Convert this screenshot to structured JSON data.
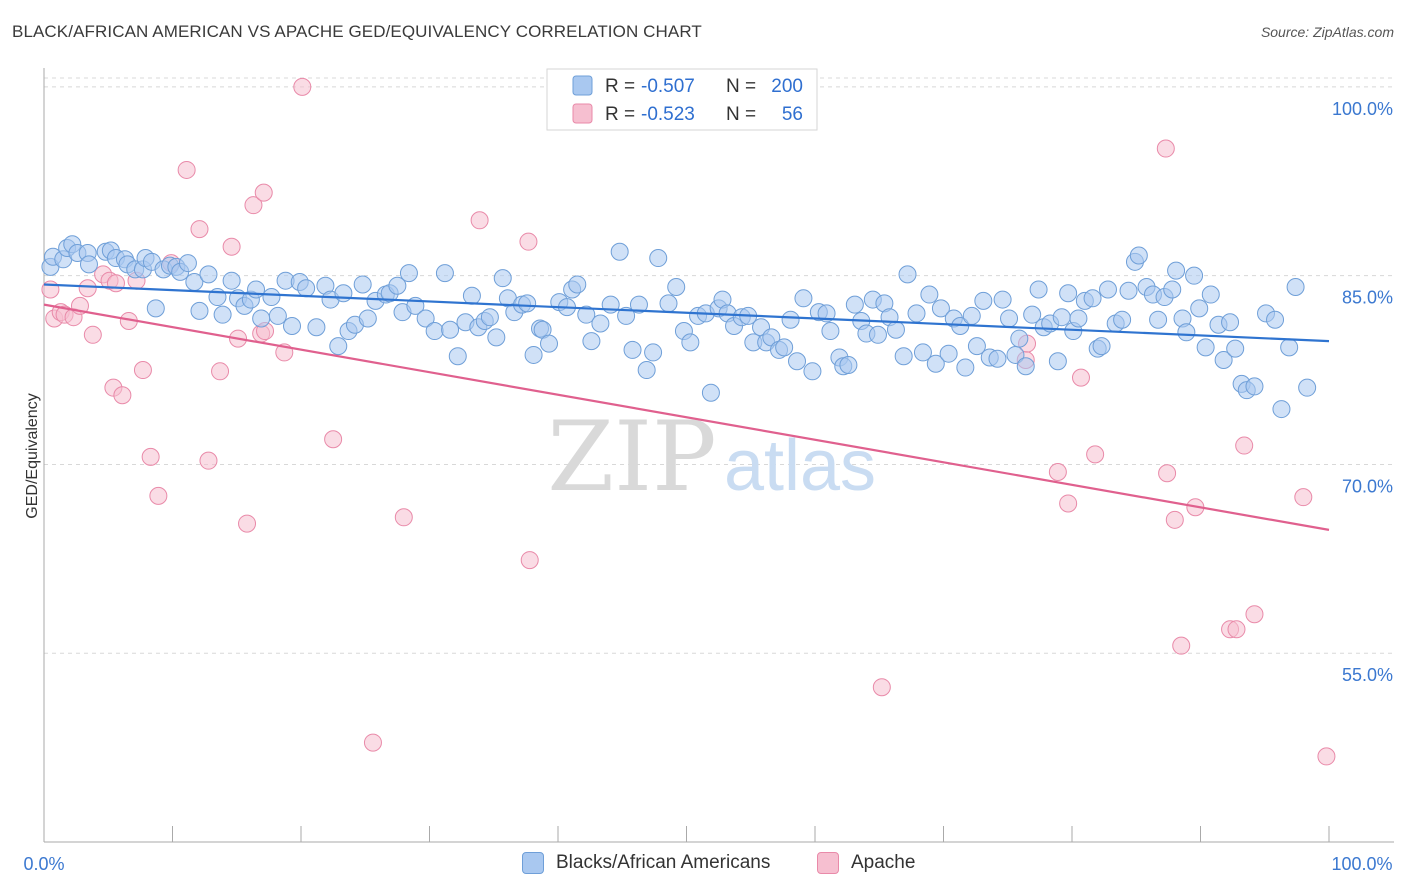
{
  "title": "BLACK/AFRICAN AMERICAN VS APACHE GED/EQUIVALENCY CORRELATION CHART",
  "source": "Source: ZipAtlas.com",
  "watermark": {
    "zip": "ZIP",
    "atlas": "atlas"
  },
  "colors": {
    "blue_fill": "#a9c8f0",
    "blue_stroke": "#6f9fd8",
    "blue_line": "#2f74d0",
    "pink_fill": "#f6bfd0",
    "pink_stroke": "#e98aa9",
    "pink_line": "#e0608e",
    "axis_text": "#3b78d0",
    "grid": "#d8d8d8"
  },
  "legend": {
    "rows": [
      {
        "r_label": "R =",
        "r_value": "-0.507",
        "n_label": "N =",
        "n_value": "200"
      },
      {
        "r_label": "R =",
        "r_value": "-0.523",
        "n_label": "N =",
        "n_value": "56"
      }
    ]
  },
  "bottom_legend": {
    "series1": "Blacks/African Americans",
    "series2": "Apache"
  },
  "chart_data": {
    "type": "scatter",
    "title": "BLACK/AFRICAN AMERICAN VS APACHE GED/EQUIVALENCY CORRELATION CHART",
    "xlabel": "",
    "ylabel": "GED/Equivalency",
    "xlim": [
      0,
      100
    ],
    "ylim": [
      40,
      101.5
    ],
    "x_tick_labels": [
      "0.0%",
      "100.0%"
    ],
    "y_ticks": [
      55,
      70,
      85,
      100
    ],
    "y_tick_labels": [
      "55.0%",
      "70.0%",
      "85.0%",
      "100.0%"
    ],
    "grid": "horizontal dashed",
    "legend_position": "top-center",
    "series": [
      {
        "name": "Blacks/African Americans",
        "r": -0.507,
        "n": 200,
        "trend": {
          "x": [
            0,
            100
          ],
          "y": [
            84.3,
            79.8
          ]
        },
        "points": [
          [
            0.5,
            85.7
          ],
          [
            0.7,
            86.5
          ],
          [
            1.5,
            86.3
          ],
          [
            1.8,
            87.2
          ],
          [
            2.2,
            87.5
          ],
          [
            2.6,
            86.8
          ],
          [
            3.4,
            86.8
          ],
          [
            3.5,
            85.9
          ],
          [
            4.8,
            86.9
          ],
          [
            5.2,
            87.0
          ],
          [
            5.6,
            86.4
          ],
          [
            6.3,
            86.3
          ],
          [
            6.5,
            85.9
          ],
          [
            7.1,
            85.5
          ],
          [
            7.7,
            85.5
          ],
          [
            7.9,
            86.4
          ],
          [
            8.4,
            86.1
          ],
          [
            8.7,
            82.4
          ],
          [
            9.3,
            85.5
          ],
          [
            9.8,
            85.8
          ],
          [
            10.3,
            85.7
          ],
          [
            10.6,
            85.3
          ],
          [
            11.2,
            86.0
          ],
          [
            11.7,
            84.5
          ],
          [
            12.1,
            82.2
          ],
          [
            12.8,
            85.1
          ],
          [
            13.5,
            83.3
          ],
          [
            13.9,
            81.9
          ],
          [
            14.6,
            84.6
          ],
          [
            15.1,
            83.2
          ],
          [
            15.6,
            82.6
          ],
          [
            16.1,
            83.1
          ],
          [
            16.5,
            83.9
          ],
          [
            16.9,
            81.6
          ],
          [
            17.7,
            83.3
          ],
          [
            18.2,
            81.8
          ],
          [
            18.8,
            84.6
          ],
          [
            19.3,
            81.0
          ],
          [
            19.9,
            84.5
          ],
          [
            20.4,
            84.0
          ],
          [
            21.2,
            80.9
          ],
          [
            21.9,
            84.2
          ],
          [
            22.3,
            83.1
          ],
          [
            22.9,
            79.4
          ],
          [
            23.3,
            83.6
          ],
          [
            23.7,
            80.6
          ],
          [
            24.2,
            81.1
          ],
          [
            24.8,
            84.3
          ],
          [
            25.2,
            81.6
          ],
          [
            25.8,
            83.0
          ],
          [
            26.6,
            83.5
          ],
          [
            26.9,
            83.6
          ],
          [
            27.5,
            84.2
          ],
          [
            27.9,
            82.1
          ],
          [
            28.4,
            85.2
          ],
          [
            28.9,
            82.6
          ],
          [
            29.7,
            81.6
          ],
          [
            30.4,
            80.6
          ],
          [
            31.2,
            85.2
          ],
          [
            31.6,
            80.7
          ],
          [
            32.2,
            78.6
          ],
          [
            32.8,
            81.3
          ],
          [
            33.3,
            83.4
          ],
          [
            33.8,
            80.9
          ],
          [
            34.3,
            81.4
          ],
          [
            34.7,
            81.7
          ],
          [
            35.2,
            80.1
          ],
          [
            35.7,
            84.8
          ],
          [
            36.1,
            83.2
          ],
          [
            36.6,
            82.1
          ],
          [
            37.2,
            82.7
          ],
          [
            37.6,
            82.8
          ],
          [
            38.1,
            78.7
          ],
          [
            38.6,
            80.8
          ],
          [
            38.8,
            80.7
          ],
          [
            39.3,
            79.6
          ],
          [
            40.1,
            82.9
          ],
          [
            40.7,
            82.5
          ],
          [
            41.1,
            83.9
          ],
          [
            41.5,
            84.3
          ],
          [
            42.2,
            81.9
          ],
          [
            42.6,
            79.8
          ],
          [
            43.3,
            81.2
          ],
          [
            44.1,
            82.7
          ],
          [
            44.8,
            86.9
          ],
          [
            45.3,
            81.8
          ],
          [
            45.8,
            79.1
          ],
          [
            46.3,
            82.7
          ],
          [
            46.9,
            77.5
          ],
          [
            47.4,
            78.9
          ],
          [
            47.8,
            86.4
          ],
          [
            48.6,
            82.8
          ],
          [
            49.2,
            84.1
          ],
          [
            49.8,
            80.6
          ],
          [
            50.3,
            79.7
          ],
          [
            50.9,
            81.8
          ],
          [
            51.5,
            82.0
          ],
          [
            51.9,
            75.7
          ],
          [
            52.5,
            82.4
          ],
          [
            52.8,
            83.1
          ],
          [
            53.2,
            82.0
          ],
          [
            53.7,
            81.0
          ],
          [
            54.3,
            81.7
          ],
          [
            54.8,
            81.8
          ],
          [
            55.2,
            79.7
          ],
          [
            55.8,
            80.9
          ],
          [
            56.2,
            79.7
          ],
          [
            56.6,
            80.1
          ],
          [
            57.2,
            79.1
          ],
          [
            57.6,
            79.3
          ],
          [
            58.1,
            81.5
          ],
          [
            58.6,
            78.2
          ],
          [
            59.1,
            83.2
          ],
          [
            59.8,
            77.4
          ],
          [
            60.3,
            82.1
          ],
          [
            60.9,
            82.0
          ],
          [
            61.2,
            80.6
          ],
          [
            61.9,
            78.5
          ],
          [
            62.2,
            77.8
          ],
          [
            62.6,
            77.9
          ],
          [
            63.1,
            82.7
          ],
          [
            63.6,
            81.4
          ],
          [
            64.0,
            80.4
          ],
          [
            64.5,
            83.1
          ],
          [
            64.9,
            80.3
          ],
          [
            65.4,
            82.8
          ],
          [
            65.8,
            81.7
          ],
          [
            66.3,
            80.7
          ],
          [
            66.9,
            78.6
          ],
          [
            67.2,
            85.1
          ],
          [
            67.9,
            82.0
          ],
          [
            68.4,
            78.9
          ],
          [
            68.9,
            83.5
          ],
          [
            69.4,
            78.0
          ],
          [
            69.8,
            82.4
          ],
          [
            70.4,
            78.8
          ],
          [
            70.8,
            81.6
          ],
          [
            71.3,
            81.0
          ],
          [
            71.7,
            77.7
          ],
          [
            72.2,
            81.8
          ],
          [
            72.6,
            79.4
          ],
          [
            73.1,
            83.0
          ],
          [
            73.6,
            78.5
          ],
          [
            74.2,
            78.4
          ],
          [
            74.6,
            83.1
          ],
          [
            75.1,
            81.6
          ],
          [
            75.6,
            78.7
          ],
          [
            75.9,
            80.0
          ],
          [
            76.4,
            77.8
          ],
          [
            76.9,
            81.9
          ],
          [
            77.4,
            83.9
          ],
          [
            77.8,
            80.9
          ],
          [
            78.3,
            81.2
          ],
          [
            78.9,
            78.2
          ],
          [
            79.2,
            81.7
          ],
          [
            79.7,
            83.6
          ],
          [
            80.1,
            80.6
          ],
          [
            80.5,
            81.6
          ],
          [
            81.0,
            83.0
          ],
          [
            81.6,
            83.2
          ],
          [
            82.0,
            79.2
          ],
          [
            82.3,
            79.4
          ],
          [
            82.8,
            83.9
          ],
          [
            83.4,
            81.2
          ],
          [
            83.9,
            81.5
          ],
          [
            84.4,
            83.8
          ],
          [
            84.9,
            86.1
          ],
          [
            85.2,
            86.6
          ],
          [
            85.8,
            84.1
          ],
          [
            86.3,
            83.5
          ],
          [
            86.7,
            81.5
          ],
          [
            87.2,
            83.3
          ],
          [
            87.8,
            83.9
          ],
          [
            88.1,
            85.4
          ],
          [
            88.6,
            81.6
          ],
          [
            88.9,
            80.5
          ],
          [
            89.5,
            85.0
          ],
          [
            89.9,
            82.4
          ],
          [
            90.4,
            79.3
          ],
          [
            90.8,
            83.5
          ],
          [
            91.4,
            81.1
          ],
          [
            91.8,
            78.3
          ],
          [
            92.3,
            81.3
          ],
          [
            92.7,
            79.2
          ],
          [
            93.2,
            76.4
          ],
          [
            93.6,
            75.9
          ],
          [
            94.2,
            76.2
          ],
          [
            95.1,
            82.0
          ],
          [
            95.8,
            81.5
          ],
          [
            96.3,
            74.4
          ],
          [
            96.9,
            79.3
          ],
          [
            97.4,
            84.1
          ],
          [
            98.3,
            76.1
          ]
        ]
      },
      {
        "name": "Apache",
        "r": -0.523,
        "n": 56,
        "trend": {
          "x": [
            0,
            100
          ],
          "y": [
            82.7,
            64.8
          ]
        },
        "points": [
          [
            0.5,
            83.9
          ],
          [
            0.8,
            81.6
          ],
          [
            1.3,
            82.1
          ],
          [
            1.6,
            81.9
          ],
          [
            2.3,
            81.7
          ],
          [
            2.8,
            82.6
          ],
          [
            3.4,
            84.0
          ],
          [
            3.8,
            80.3
          ],
          [
            4.6,
            85.1
          ],
          [
            5.1,
            84.6
          ],
          [
            5.4,
            76.1
          ],
          [
            5.6,
            84.4
          ],
          [
            6.1,
            75.5
          ],
          [
            6.6,
            81.4
          ],
          [
            7.2,
            84.6
          ],
          [
            7.7,
            77.5
          ],
          [
            8.3,
            70.6
          ],
          [
            8.9,
            67.5
          ],
          [
            9.9,
            86.0
          ],
          [
            11.1,
            93.4
          ],
          [
            12.1,
            88.7
          ],
          [
            12.8,
            70.3
          ],
          [
            13.7,
            77.4
          ],
          [
            14.6,
            87.3
          ],
          [
            15.1,
            80.0
          ],
          [
            15.8,
            65.3
          ],
          [
            16.3,
            90.6
          ],
          [
            16.9,
            80.4
          ],
          [
            17.1,
            91.6
          ],
          [
            17.2,
            80.6
          ],
          [
            18.7,
            78.9
          ],
          [
            20.1,
            100.0
          ],
          [
            22.5,
            72.0
          ],
          [
            25.6,
            47.9
          ],
          [
            28.0,
            65.8
          ],
          [
            33.9,
            89.4
          ],
          [
            37.7,
            87.7
          ],
          [
            37.8,
            62.4
          ],
          [
            65.2,
            52.3
          ],
          [
            76.4,
            78.3
          ],
          [
            76.5,
            79.6
          ],
          [
            78.9,
            69.4
          ],
          [
            79.7,
            66.9
          ],
          [
            80.7,
            76.9
          ],
          [
            81.8,
            70.8
          ],
          [
            87.3,
            95.1
          ],
          [
            87.4,
            69.3
          ],
          [
            88.0,
            65.6
          ],
          [
            88.5,
            55.6
          ],
          [
            89.6,
            66.6
          ],
          [
            92.3,
            56.9
          ],
          [
            92.8,
            56.9
          ],
          [
            93.4,
            71.5
          ],
          [
            94.2,
            58.1
          ],
          [
            98.0,
            67.4
          ],
          [
            99.8,
            46.8
          ]
        ]
      }
    ]
  }
}
